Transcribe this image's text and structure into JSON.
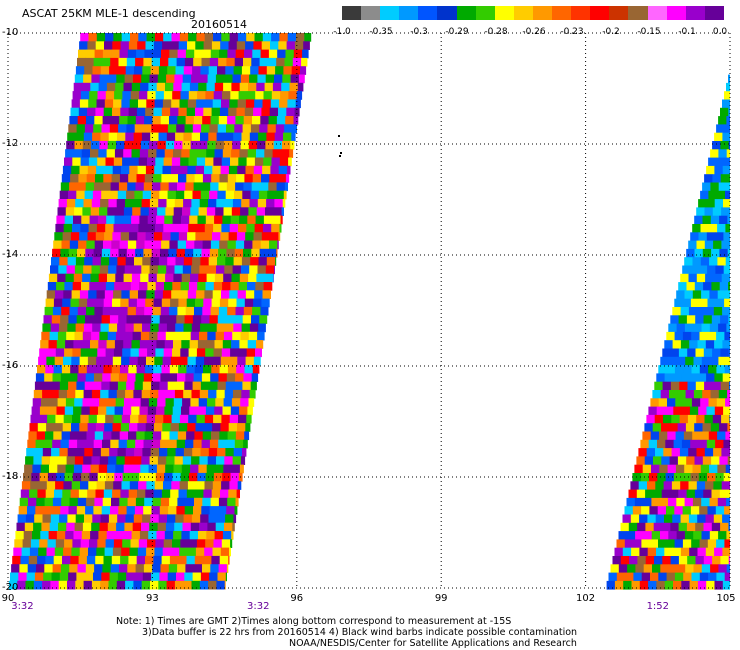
{
  "header": {
    "title": "ASCAT 25KM MLE-1 descending",
    "date": "20160514"
  },
  "colorbar": {
    "colors": [
      "#3a3a3a",
      "#8c8c8c",
      "#00ccff",
      "#0099ff",
      "#0055ff",
      "#0033cc",
      "#00aa00",
      "#33cc00",
      "#ffff00",
      "#ffcc00",
      "#ff9900",
      "#ff6600",
      "#ff3300",
      "#ff0000",
      "#cc3300",
      "#996633",
      "#ff66ff",
      "#ff00ff",
      "#9900cc",
      "#660099"
    ],
    "labels": [
      "-1.0",
      "-0.35",
      "-0.3",
      "-0.29",
      "-0.28",
      "-0.26",
      "-0.23",
      "-0.2",
      "-0.15",
      "-0.1",
      "0.0"
    ]
  },
  "axes": {
    "lat_labels": [
      "-10",
      "-12",
      "-14",
      "-16",
      "-18",
      "-20"
    ],
    "lon_labels": [
      "90",
      "93",
      "96",
      "99",
      "102",
      "105"
    ],
    "lat_values": [
      -10,
      -12,
      -14,
      -16,
      -18,
      -20
    ],
    "lon_values": [
      90,
      93,
      96,
      99,
      102,
      105
    ],
    "lat_range": [
      -20,
      -10
    ],
    "lon_range": [
      90,
      105
    ],
    "grid": "dotted"
  },
  "times": [
    {
      "label": "3:32",
      "lon": 90.3
    },
    {
      "label": "3:32",
      "lon": 95.2
    },
    {
      "label": "1:52",
      "lon": 103.5
    }
  ],
  "notes": {
    "line1": "Note: 1) Times are GMT 2)Times along bottom correspond to measurement at -15S",
    "line2": "3)Data buffer is 22 hrs from 20160514 4) Black wind barbs indicate possible contamination",
    "line3": "NOAA/NESDIS/Center for Satellite Applications and Research"
  },
  "swaths": [
    {
      "name": "west-swath",
      "lat_top": -10,
      "lon_left_top": 91.5,
      "lon_right_top": 96.3,
      "lat_bottom": -20,
      "lon_left_bottom": 90,
      "lon_right_bottom": 94.5,
      "palette": "mixed"
    },
    {
      "name": "east-swath",
      "lat_top": -10.6,
      "lon_left_top": 105,
      "lon_right_top": 105,
      "lat_bottom": -20,
      "lon_left_bottom": 102.4,
      "lon_right_bottom": 105,
      "palette": "blue"
    }
  ]
}
